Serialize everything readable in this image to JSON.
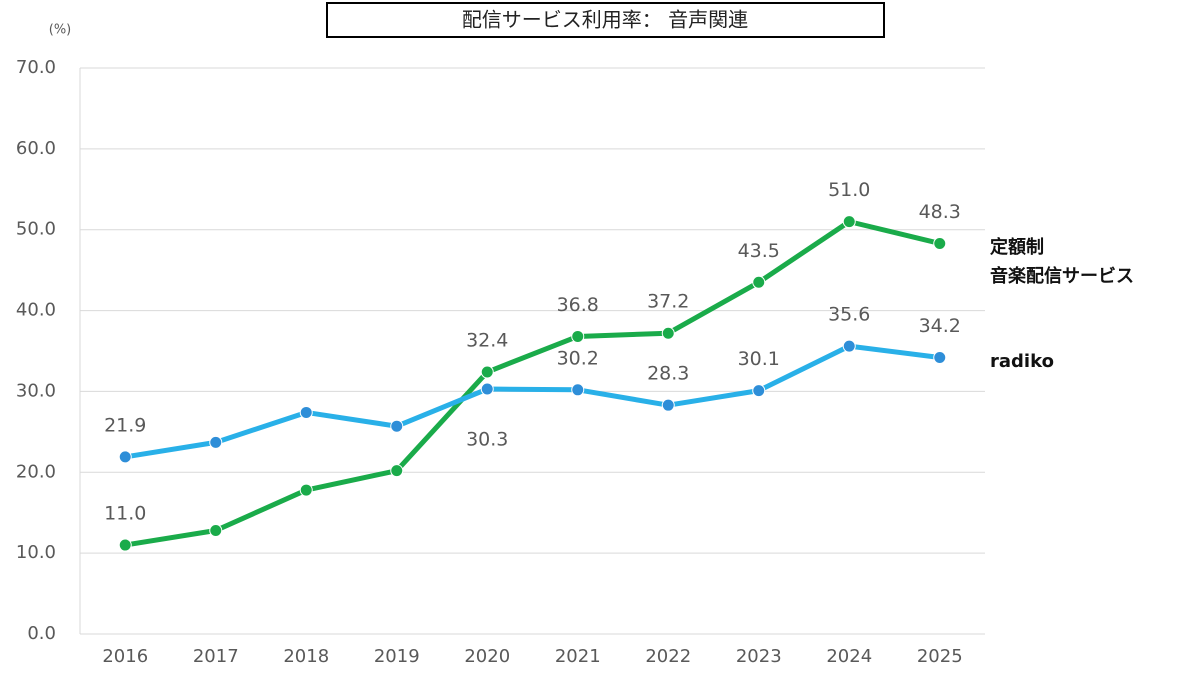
{
  "chart_data": {
    "type": "line",
    "title": "配信サービス利用率： 音声関連",
    "y_unit": "(%)",
    "categories": [
      "2016",
      "2017",
      "2018",
      "2019",
      "2020",
      "2021",
      "2022",
      "2023",
      "2024",
      "2025"
    ],
    "series": [
      {
        "name": "定額制\n音楽配信サービス",
        "color": "#1aab4a",
        "marker_color": "#1aab4a",
        "values": [
          11,
          12.8,
          17.8,
          20.2,
          32.4,
          36.8,
          37.2,
          43.5,
          51,
          48.3
        ],
        "value_labels": [
          "11.0",
          null,
          null,
          null,
          "32.4",
          "36.8",
          "37.2",
          "43.5",
          "51.0",
          "48.3"
        ]
      },
      {
        "name": "radiko",
        "color": "#29b0e8",
        "marker_color": "#2e8ed8",
        "values": [
          21.9,
          23.7,
          27.4,
          25.7,
          30.3,
          30.2,
          28.3,
          30.1,
          35.6,
          34.2
        ],
        "value_labels": [
          "21.9",
          null,
          null,
          null,
          "30.3",
          "30.2",
          "28.3",
          "30.1",
          "35.6",
          "34.2"
        ]
      }
    ],
    "ylim": [
      0,
      70
    ],
    "yticks": [
      {
        "value": 0,
        "label": "0.0"
      },
      {
        "value": 10,
        "label": "10.0"
      },
      {
        "value": 20,
        "label": "20.0"
      },
      {
        "value": 30,
        "label": "30.0"
      },
      {
        "value": 40,
        "label": "40.0"
      },
      {
        "value": 50,
        "label": "50.0"
      },
      {
        "value": 60,
        "label": "60.0"
      },
      {
        "value": 70,
        "label": "70.0"
      }
    ],
    "grid": true
  }
}
